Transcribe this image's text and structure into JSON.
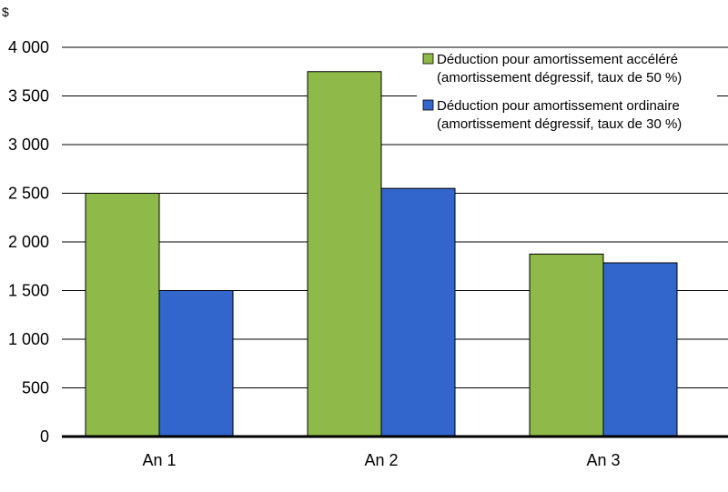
{
  "chart_data": {
    "type": "bar",
    "ylabel": "$",
    "ylim": [
      0,
      4000
    ],
    "yticks": [
      0,
      500,
      1000,
      1500,
      2000,
      2500,
      3000,
      3500,
      4000
    ],
    "ytick_labels": [
      "0",
      "500",
      "1 000",
      "1 500",
      "2 000",
      "2 500",
      "3 000",
      "3 500",
      "4 000"
    ],
    "categories": [
      "An 1",
      "An 2",
      "An 3"
    ],
    "grid": true,
    "legend_position": "top-right",
    "series": [
      {
        "name": "Déduction pour amortissement accéléré",
        "name_line2": "(amortissement dégressif, taux de 50 %)",
        "color": "#8fba4a",
        "values": [
          2500,
          3750,
          1875
        ]
      },
      {
        "name": "Déduction pour amortissement ordinaire",
        "name_line2": "(amortissement dégressif, taux de 30 %)",
        "color": "#3366cc",
        "values": [
          1500,
          2550,
          1785
        ]
      }
    ]
  }
}
